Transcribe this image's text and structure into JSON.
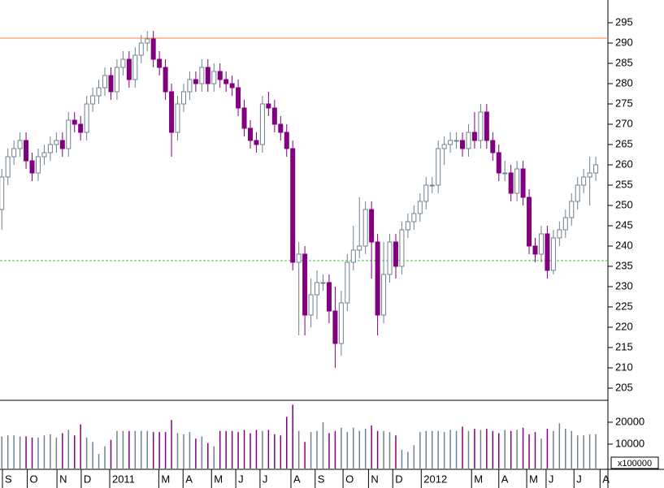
{
  "chart_data": {
    "type": "candlestick",
    "x": [
      0,
      1,
      2,
      3,
      4,
      5,
      6,
      7,
      8,
      9,
      10,
      11,
      12,
      13,
      14,
      15,
      16,
      17,
      18,
      19,
      20,
      21,
      22,
      23,
      24,
      25,
      26,
      27,
      28,
      29,
      30,
      31,
      32,
      33,
      34,
      35,
      36,
      37,
      38,
      39,
      40,
      41,
      42,
      43,
      44,
      45,
      46,
      47,
      48,
      49,
      50,
      51,
      52,
      53,
      54,
      55,
      56,
      57,
      58,
      59,
      60,
      61,
      62,
      63,
      64,
      65,
      66,
      67,
      68,
      69,
      70,
      71,
      72,
      73,
      74,
      75,
      76,
      77,
      78,
      79,
      80,
      81,
      82,
      83,
      84,
      85,
      86,
      87,
      88,
      89,
      90,
      91,
      92,
      93,
      94,
      95,
      96,
      97,
      98
    ],
    "open": [
      249,
      257,
      262,
      264,
      266,
      261,
      258,
      262,
      263,
      265,
      266,
      264,
      271,
      270,
      268,
      275,
      277,
      279,
      282,
      278,
      284,
      286,
      281,
      287,
      290,
      291,
      286,
      284,
      278,
      268,
      275,
      278,
      281,
      280,
      284,
      280,
      283,
      281,
      280,
      279,
      274,
      269,
      266,
      265,
      275,
      274,
      270,
      268,
      264,
      236,
      238,
      223,
      228,
      231,
      231,
      224,
      216,
      226,
      236,
      239,
      240,
      249,
      241,
      223,
      233,
      241,
      235,
      244,
      246,
      248,
      251,
      255,
      255,
      264,
      265,
      266,
      266,
      264,
      268,
      266,
      273,
      266,
      263,
      258,
      258,
      253,
      259,
      252,
      240,
      238,
      243,
      234,
      242,
      244,
      247,
      251,
      255,
      257,
      258
    ],
    "high": [
      259,
      264,
      266,
      268,
      268,
      263,
      264,
      265,
      267,
      268,
      268,
      273,
      273,
      272,
      277,
      279,
      281,
      284,
      284,
      286,
      288,
      288,
      289,
      292,
      293,
      293,
      288,
      286,
      280,
      277,
      280,
      283,
      283,
      286,
      286,
      285,
      285,
      283,
      282,
      281,
      276,
      271,
      268,
      277,
      278,
      276,
      272,
      270,
      266,
      241,
      240,
      232,
      234,
      233,
      233,
      230,
      229,
      238,
      245,
      252,
      251,
      251,
      243,
      241,
      243,
      243,
      246,
      248,
      250,
      253,
      257,
      257,
      266,
      267,
      268,
      268,
      268,
      270,
      273,
      275,
      275,
      268,
      265,
      261,
      260,
      261,
      261,
      254,
      242,
      245,
      245,
      244,
      246,
      249,
      253,
      257,
      259,
      262,
      262
    ],
    "low": [
      244,
      255,
      260,
      262,
      259,
      256,
      256,
      260,
      261,
      263,
      262,
      262,
      268,
      266,
      266,
      273,
      275,
      277,
      276,
      276,
      282,
      279,
      279,
      285,
      288,
      284,
      282,
      276,
      262,
      266,
      273,
      276,
      278,
      278,
      278,
      278,
      279,
      278,
      277,
      272,
      267,
      264,
      263,
      263,
      272,
      268,
      266,
      262,
      234,
      218,
      218,
      220,
      222,
      229,
      221,
      210,
      213,
      224,
      234,
      237,
      238,
      232,
      218,
      221,
      231,
      232,
      233,
      242,
      244,
      246,
      249,
      253,
      253,
      260,
      263,
      264,
      262,
      262,
      264,
      264,
      264,
      261,
      256,
      256,
      251,
      251,
      250,
      238,
      236,
      236,
      232,
      233,
      240,
      242,
      245,
      249,
      253,
      250,
      256
    ],
    "close": [
      257,
      262,
      264,
      266,
      261,
      258,
      262,
      263,
      265,
      266,
      264,
      271,
      270,
      268,
      275,
      277,
      279,
      282,
      278,
      284,
      286,
      281,
      287,
      290,
      291,
      286,
      284,
      278,
      268,
      275,
      278,
      281,
      280,
      284,
      280,
      283,
      281,
      280,
      279,
      274,
      269,
      266,
      265,
      275,
      274,
      270,
      268,
      264,
      236,
      238,
      223,
      228,
      231,
      231,
      224,
      216,
      226,
      236,
      239,
      240,
      249,
      241,
      223,
      233,
      241,
      235,
      244,
      246,
      248,
      251,
      255,
      255,
      264,
      265,
      266,
      266,
      264,
      268,
      266,
      273,
      266,
      263,
      258,
      258,
      253,
      259,
      252,
      240,
      238,
      243,
      234,
      242,
      244,
      247,
      251,
      255,
      257,
      258,
      260
    ],
    "volume": [
      13500,
      14000,
      14000,
      13500,
      13500,
      13000,
      13000,
      14000,
      14500,
      13000,
      15000,
      16500,
      14000,
      19000,
      13000,
      11000,
      5500,
      9000,
      12000,
      16000,
      16000,
      16000,
      16000,
      16000,
      16000,
      15500,
      15500,
      15500,
      21000,
      15000,
      14500,
      15500,
      12500,
      13500,
      10500,
      9000,
      16000,
      16000,
      16000,
      15500,
      16500,
      15000,
      16500,
      16000,
      16500,
      14500,
      14000,
      22500,
      28000,
      16000,
      11000,
      15500,
      16000,
      20000,
      15000,
      16000,
      17500,
      15500,
      17500,
      16000,
      17000,
      18500,
      16000,
      16000,
      15500,
      14000,
      7500,
      6500,
      9500,
      15500,
      16000,
      16000,
      16000,
      15500,
      16500,
      16000,
      18000,
      16000,
      17000,
      16500,
      17000,
      16000,
      15000,
      16500,
      16000,
      16500,
      17500,
      14500,
      15500,
      12500,
      17000,
      16000,
      19500,
      17000,
      16000,
      14000,
      14000,
      14500,
      14500
    ],
    "up_color": "#ffffff",
    "up_edge_color": "#708090",
    "down_color": "#800080",
    "xlim": [
      -0.3,
      100.0
    ],
    "xticks": [
      {
        "value": 0.1,
        "label": "S"
      },
      {
        "value": 4.2,
        "label": "O"
      },
      {
        "value": 9.1,
        "label": "N"
      },
      {
        "value": 13.1,
        "label": "D"
      },
      {
        "value": 17.8,
        "label": "2011"
      },
      {
        "value": 25.9,
        "label": "M"
      },
      {
        "value": 29.9,
        "label": "A"
      },
      {
        "value": 34.6,
        "label": "M"
      },
      {
        "value": 38.6,
        "label": "J"
      },
      {
        "value": 42.6,
        "label": "J"
      },
      {
        "value": 47.7,
        "label": "A"
      },
      {
        "value": 51.7,
        "label": "S"
      },
      {
        "value": 56.3,
        "label": "O"
      },
      {
        "value": 60.5,
        "label": "N"
      },
      {
        "value": 64.5,
        "label": "D"
      },
      {
        "value": 69.2,
        "label": "2012"
      },
      {
        "value": 77.5,
        "label": "M"
      },
      {
        "value": 82.0,
        "label": "A"
      },
      {
        "value": 86.6,
        "label": "M"
      },
      {
        "value": 89.8,
        "label": "J"
      },
      {
        "value": 94.4,
        "label": "J"
      },
      {
        "value": 98.7,
        "label": "A"
      }
    ],
    "ylim": [
      202,
      300.6
    ],
    "yticks": [
      205,
      210,
      215,
      220,
      225,
      230,
      235,
      240,
      245,
      250,
      255,
      260,
      265,
      270,
      275,
      280,
      285,
      290,
      295
    ],
    "volume_ylim": [
      -1500,
      30000
    ],
    "volume_yticks": [
      10000,
      20000
    ],
    "volume_unit": "x100000",
    "reference_lines": [
      {
        "value": 291.2,
        "color": "#ff8040",
        "dashed": false
      },
      {
        "value": 236.4,
        "color": "#40c040",
        "dashed": true
      }
    ]
  }
}
